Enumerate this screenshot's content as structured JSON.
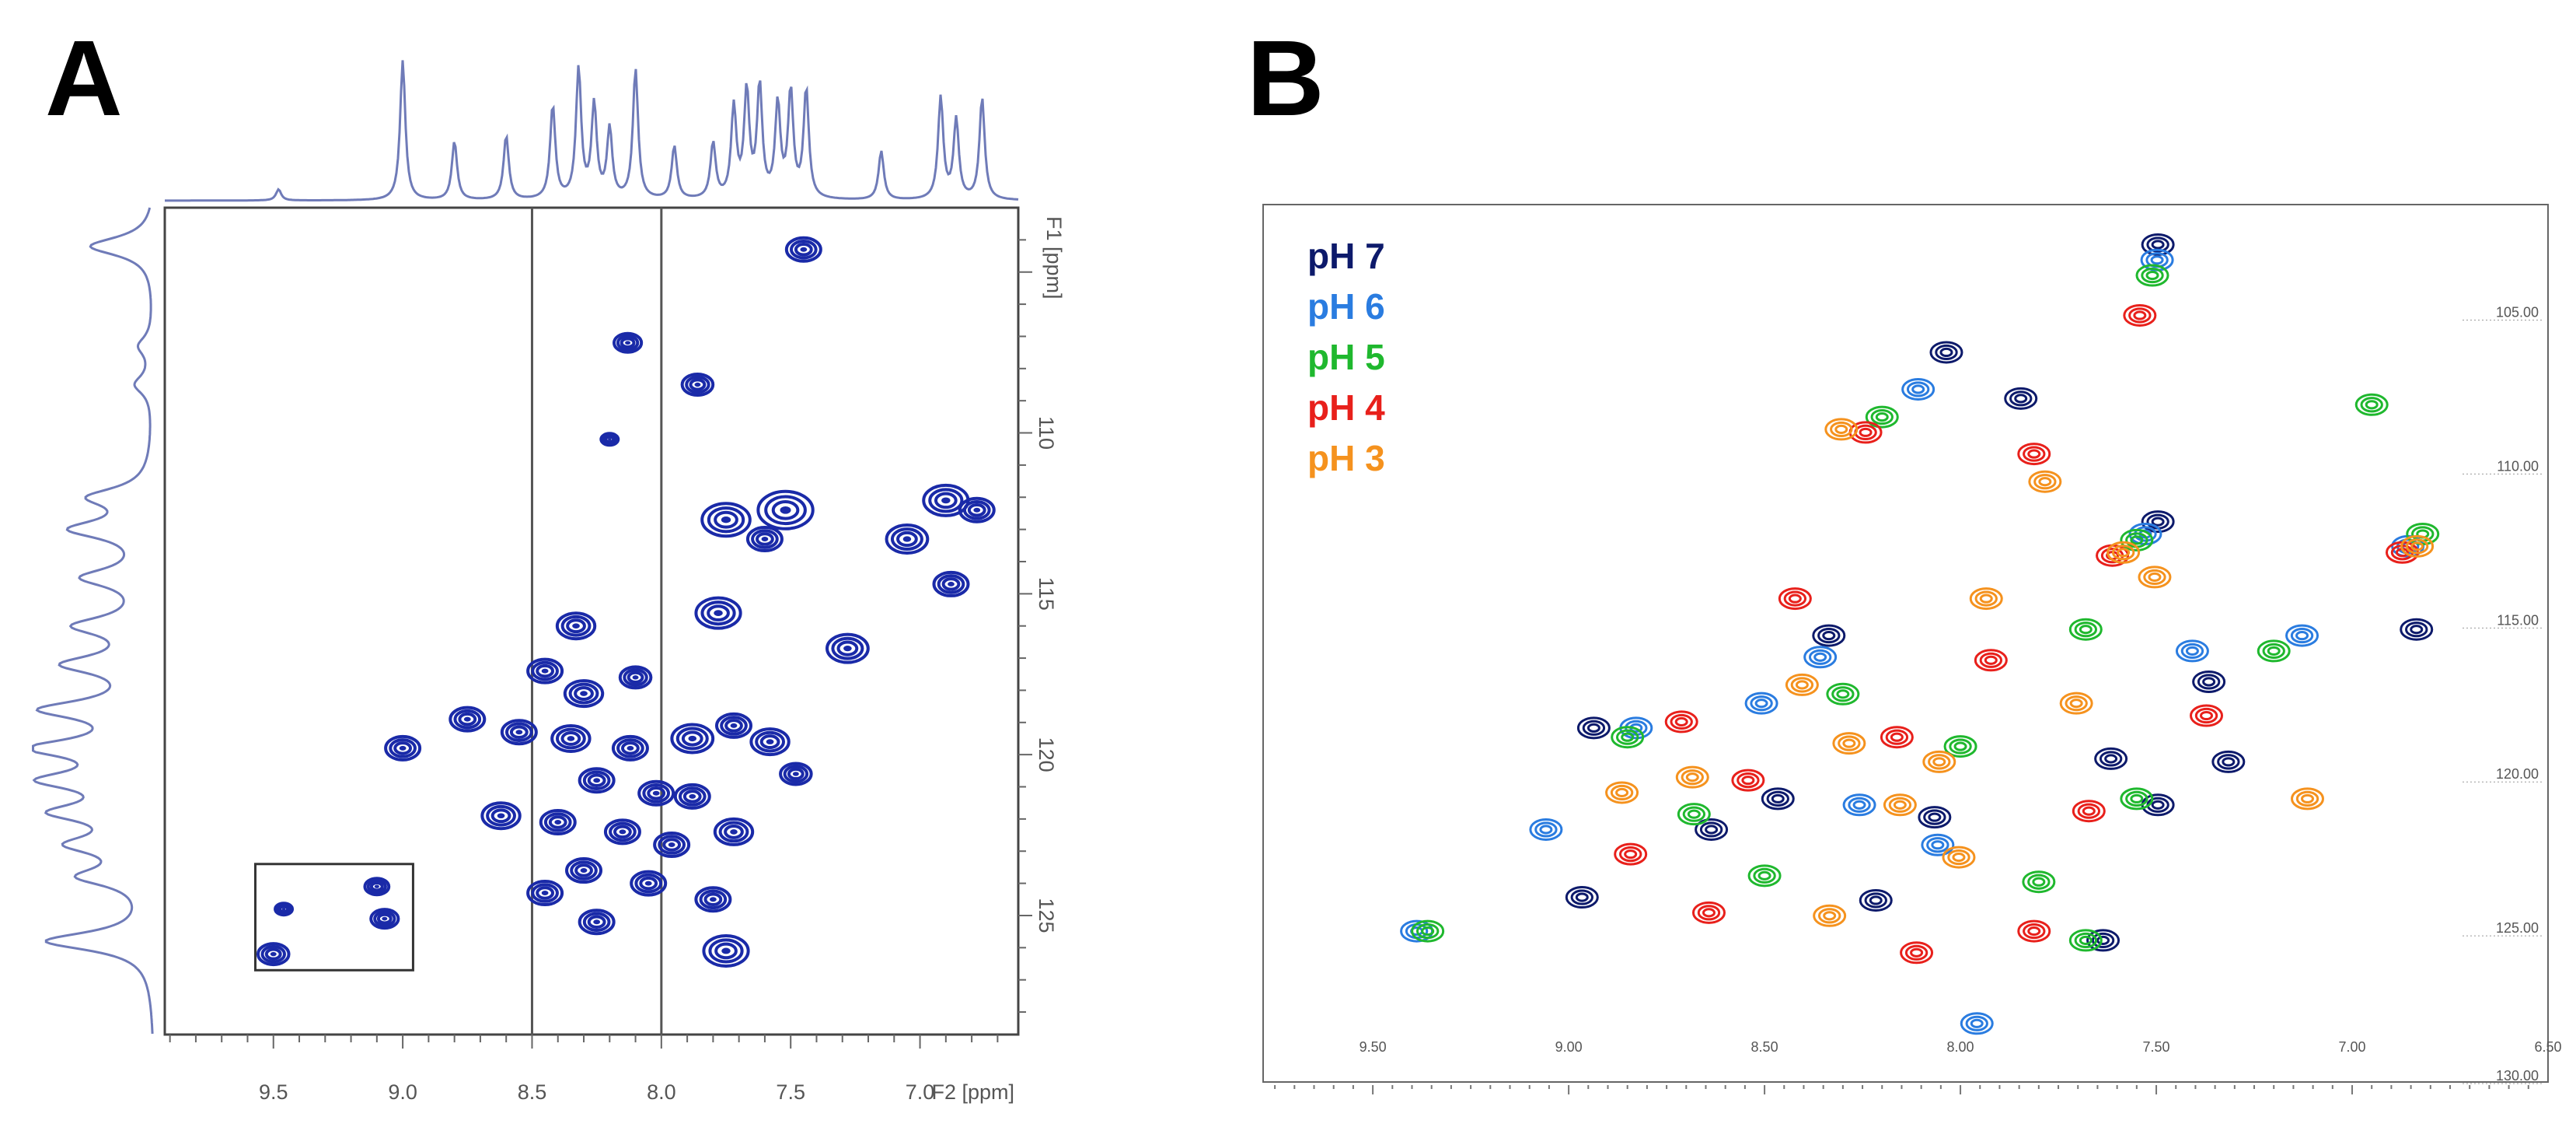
{
  "figure": {
    "panel_a_label": "A",
    "panel_b_label": "B"
  },
  "chart_data": [
    {
      "id": "A",
      "type": "scatter",
      "title": "",
      "xlabel": "F2 [ppm]",
      "ylabel": "F1 [ppm]",
      "xlim": [
        9.92,
        6.62
      ],
      "ylim": [
        103,
        128.7
      ],
      "x_ticks": [
        "9.5",
        "9.0",
        "8.5",
        "8.0",
        "7.5",
        "7.0"
      ],
      "y_ticks": [
        "110",
        "115",
        "120",
        "125"
      ],
      "grid": false,
      "contour_color": "#1a2aa8",
      "vertical_lines_ppm": [
        8.5,
        8.0
      ],
      "inset_box": {
        "x_range": [
          9.57,
          8.96
        ],
        "y_range": [
          123.4,
          126.7
        ]
      },
      "top_projection": [
        {
          "ppm": 9.48,
          "h": 0.08
        },
        {
          "ppm": 9.0,
          "h": 1.0
        },
        {
          "ppm": 8.8,
          "h": 0.42
        },
        {
          "ppm": 8.6,
          "h": 0.46
        },
        {
          "ppm": 8.42,
          "h": 0.67
        },
        {
          "ppm": 8.32,
          "h": 0.93
        },
        {
          "ppm": 8.26,
          "h": 0.67
        },
        {
          "ppm": 8.2,
          "h": 0.5
        },
        {
          "ppm": 8.1,
          "h": 0.93
        },
        {
          "ppm": 7.95,
          "h": 0.38
        },
        {
          "ppm": 7.8,
          "h": 0.4
        },
        {
          "ppm": 7.72,
          "h": 0.65
        },
        {
          "ppm": 7.67,
          "h": 0.76
        },
        {
          "ppm": 7.62,
          "h": 0.8
        },
        {
          "ppm": 7.55,
          "h": 0.67
        },
        {
          "ppm": 7.5,
          "h": 0.76
        },
        {
          "ppm": 7.44,
          "h": 0.78
        },
        {
          "ppm": 7.15,
          "h": 0.35
        },
        {
          "ppm": 6.92,
          "h": 0.73
        },
        {
          "ppm": 6.86,
          "h": 0.57
        },
        {
          "ppm": 6.76,
          "h": 0.73
        }
      ],
      "side_projection": [
        {
          "ppm": 104.2,
          "h": 0.55
        },
        {
          "ppm": 107.3,
          "h": 0.12
        },
        {
          "ppm": 108.5,
          "h": 0.15
        },
        {
          "ppm": 112.0,
          "h": 0.5
        },
        {
          "ppm": 113.0,
          "h": 0.65
        },
        {
          "ppm": 114.5,
          "h": 0.55
        },
        {
          "ppm": 116.0,
          "h": 0.6
        },
        {
          "ppm": 117.2,
          "h": 0.68
        },
        {
          "ppm": 118.6,
          "h": 0.85
        },
        {
          "ppm": 119.8,
          "h": 0.9
        },
        {
          "ppm": 120.8,
          "h": 0.8
        },
        {
          "ppm": 121.8,
          "h": 0.72
        },
        {
          "ppm": 122.8,
          "h": 0.6
        },
        {
          "ppm": 123.8,
          "h": 0.55
        },
        {
          "ppm": 125.8,
          "h": 0.9
        }
      ],
      "peaks": [
        {
          "x": 7.45,
          "y": 104.3,
          "s": 1.0
        },
        {
          "x": 8.13,
          "y": 107.2,
          "s": 0.8
        },
        {
          "x": 7.86,
          "y": 108.5,
          "s": 0.9
        },
        {
          "x": 8.2,
          "y": 110.2,
          "s": 0.5
        },
        {
          "x": 7.52,
          "y": 112.4,
          "s": 1.6
        },
        {
          "x": 7.75,
          "y": 112.7,
          "s": 1.4
        },
        {
          "x": 7.6,
          "y": 113.3,
          "s": 1.0
        },
        {
          "x": 6.9,
          "y": 112.1,
          "s": 1.3
        },
        {
          "x": 6.78,
          "y": 112.4,
          "s": 1.0
        },
        {
          "x": 7.05,
          "y": 113.3,
          "s": 1.2
        },
        {
          "x": 6.88,
          "y": 114.7,
          "s": 1.0
        },
        {
          "x": 7.78,
          "y": 115.6,
          "s": 1.3
        },
        {
          "x": 7.28,
          "y": 116.7,
          "s": 1.2
        },
        {
          "x": 8.33,
          "y": 116.0,
          "s": 1.1
        },
        {
          "x": 8.45,
          "y": 117.4,
          "s": 1.0
        },
        {
          "x": 8.3,
          "y": 118.1,
          "s": 1.1
        },
        {
          "x": 8.1,
          "y": 117.6,
          "s": 0.9
        },
        {
          "x": 8.75,
          "y": 118.9,
          "s": 1.0
        },
        {
          "x": 9.0,
          "y": 119.8,
          "s": 1.0
        },
        {
          "x": 8.55,
          "y": 119.3,
          "s": 1.0
        },
        {
          "x": 8.35,
          "y": 119.5,
          "s": 1.1
        },
        {
          "x": 8.12,
          "y": 119.8,
          "s": 1.0
        },
        {
          "x": 7.88,
          "y": 119.5,
          "s": 1.2
        },
        {
          "x": 7.72,
          "y": 119.1,
          "s": 1.0
        },
        {
          "x": 7.58,
          "y": 119.6,
          "s": 1.1
        },
        {
          "x": 7.48,
          "y": 120.6,
          "s": 0.9
        },
        {
          "x": 8.25,
          "y": 120.8,
          "s": 1.0
        },
        {
          "x": 8.02,
          "y": 121.2,
          "s": 1.0
        },
        {
          "x": 7.88,
          "y": 121.3,
          "s": 1.0
        },
        {
          "x": 8.62,
          "y": 121.9,
          "s": 1.1
        },
        {
          "x": 8.4,
          "y": 122.1,
          "s": 1.0
        },
        {
          "x": 8.15,
          "y": 122.4,
          "s": 1.0
        },
        {
          "x": 7.96,
          "y": 122.8,
          "s": 1.0
        },
        {
          "x": 7.72,
          "y": 122.4,
          "s": 1.1
        },
        {
          "x": 8.3,
          "y": 123.6,
          "s": 1.0
        },
        {
          "x": 8.05,
          "y": 124.0,
          "s": 1.0
        },
        {
          "x": 7.8,
          "y": 124.5,
          "s": 1.0
        },
        {
          "x": 8.45,
          "y": 124.3,
          "s": 1.0
        },
        {
          "x": 8.25,
          "y": 125.2,
          "s": 1.0
        },
        {
          "x": 7.75,
          "y": 126.1,
          "s": 1.3
        },
        {
          "x": 9.1,
          "y": 124.1,
          "s": 0.7
        },
        {
          "x": 9.07,
          "y": 125.1,
          "s": 0.8
        },
        {
          "x": 9.46,
          "y": 124.8,
          "s": 0.5
        },
        {
          "x": 9.5,
          "y": 126.2,
          "s": 0.9
        }
      ]
    },
    {
      "id": "B",
      "type": "scatter",
      "title": "",
      "xlabel": "",
      "ylabel": "",
      "xlim": [
        9.78,
        6.5
      ],
      "ylim": [
        101.5,
        130
      ],
      "x_ticks": [
        "9.50",
        "9.00",
        "8.50",
        "8.00",
        "7.50",
        "7.00",
        "6.50"
      ],
      "y_ticks": [
        "105.00",
        "110.00",
        "115.00",
        "120.00",
        "125.00",
        "130.00"
      ],
      "grid": false,
      "legend_position": "top-left",
      "series": [
        {
          "name": "pH 7",
          "color": "#0d1a6b",
          "peaks": [
            {
              "x": 7.48,
              "y": 102.8
            },
            {
              "x": 8.02,
              "y": 106.3
            },
            {
              "x": 7.83,
              "y": 107.8
            },
            {
              "x": 7.48,
              "y": 111.8
            },
            {
              "x": 6.82,
              "y": 115.3
            },
            {
              "x": 8.92,
              "y": 118.5
            },
            {
              "x": 8.32,
              "y": 115.5
            },
            {
              "x": 7.3,
              "y": 119.6
            },
            {
              "x": 7.6,
              "y": 119.5
            },
            {
              "x": 7.48,
              "y": 121.0
            },
            {
              "x": 8.62,
              "y": 121.8
            },
            {
              "x": 8.95,
              "y": 124.0
            },
            {
              "x": 8.45,
              "y": 120.8
            },
            {
              "x": 7.62,
              "y": 125.4
            },
            {
              "x": 8.2,
              "y": 124.1
            },
            {
              "x": 8.05,
              "y": 121.4
            },
            {
              "x": 7.35,
              "y": 117.0
            }
          ]
        },
        {
          "name": "pH 6",
          "color": "#2a7ce0",
          "peaks": [
            {
              "x": 7.49,
              "y": 103.3
            },
            {
              "x": 8.1,
              "y": 107.5
            },
            {
              "x": 7.52,
              "y": 112.2
            },
            {
              "x": 6.85,
              "y": 112.6
            },
            {
              "x": 9.38,
              "y": 125.1
            },
            {
              "x": 9.05,
              "y": 121.8
            },
            {
              "x": 8.82,
              "y": 118.5
            },
            {
              "x": 8.5,
              "y": 117.7
            },
            {
              "x": 8.35,
              "y": 116.2
            },
            {
              "x": 7.95,
              "y": 128.1
            },
            {
              "x": 7.4,
              "y": 116.0
            },
            {
              "x": 7.12,
              "y": 115.5
            },
            {
              "x": 8.25,
              "y": 121.0
            },
            {
              "x": 8.05,
              "y": 122.3
            }
          ]
        },
        {
          "name": "pH 5",
          "color": "#1fb82e",
          "peaks": [
            {
              "x": 7.51,
              "y": 103.8
            },
            {
              "x": 6.95,
              "y": 108.0
            },
            {
              "x": 8.2,
              "y": 108.4
            },
            {
              "x": 7.55,
              "y": 112.4
            },
            {
              "x": 6.82,
              "y": 112.2
            },
            {
              "x": 9.36,
              "y": 125.1
            },
            {
              "x": 8.85,
              "y": 118.8
            },
            {
              "x": 7.68,
              "y": 115.3
            },
            {
              "x": 7.2,
              "y": 116.0
            },
            {
              "x": 8.68,
              "y": 121.3
            },
            {
              "x": 8.0,
              "y": 119.1
            },
            {
              "x": 7.8,
              "y": 123.5
            },
            {
              "x": 7.68,
              "y": 125.4
            },
            {
              "x": 8.5,
              "y": 123.3
            },
            {
              "x": 7.55,
              "y": 120.8
            },
            {
              "x": 8.3,
              "y": 117.4
            }
          ]
        },
        {
          "name": "pH 4",
          "color": "#e8201b",
          "peaks": [
            {
              "x": 7.55,
              "y": 105.1
            },
            {
              "x": 8.25,
              "y": 108.9
            },
            {
              "x": 7.82,
              "y": 109.6
            },
            {
              "x": 7.62,
              "y": 112.9
            },
            {
              "x": 6.88,
              "y": 112.8
            },
            {
              "x": 8.65,
              "y": 124.5
            },
            {
              "x": 8.72,
              "y": 118.3
            },
            {
              "x": 7.93,
              "y": 116.3
            },
            {
              "x": 7.38,
              "y": 118.1
            },
            {
              "x": 8.43,
              "y": 114.3
            },
            {
              "x": 8.12,
              "y": 125.8
            },
            {
              "x": 8.85,
              "y": 122.6
            },
            {
              "x": 7.68,
              "y": 121.2
            },
            {
              "x": 8.55,
              "y": 120.2
            },
            {
              "x": 7.82,
              "y": 125.1
            },
            {
              "x": 8.17,
              "y": 118.8
            }
          ]
        },
        {
          "name": "pH 3",
          "color": "#f5921e",
          "peaks": [
            {
              "x": 8.32,
              "y": 108.8
            },
            {
              "x": 7.8,
              "y": 110.5
            },
            {
              "x": 7.6,
              "y": 112.8
            },
            {
              "x": 6.85,
              "y": 112.6
            },
            {
              "x": 7.13,
              "y": 120.8
            },
            {
              "x": 8.7,
              "y": 120.1
            },
            {
              "x": 8.42,
              "y": 117.1
            },
            {
              "x": 7.95,
              "y": 114.3
            },
            {
              "x": 8.88,
              "y": 120.6
            },
            {
              "x": 8.35,
              "y": 124.6
            },
            {
              "x": 7.72,
              "y": 117.7
            },
            {
              "x": 8.17,
              "y": 121.0
            },
            {
              "x": 8.07,
              "y": 119.6
            },
            {
              "x": 8.3,
              "y": 119.0
            },
            {
              "x": 8.02,
              "y": 122.7
            },
            {
              "x": 7.52,
              "y": 113.6
            }
          ]
        }
      ]
    }
  ]
}
